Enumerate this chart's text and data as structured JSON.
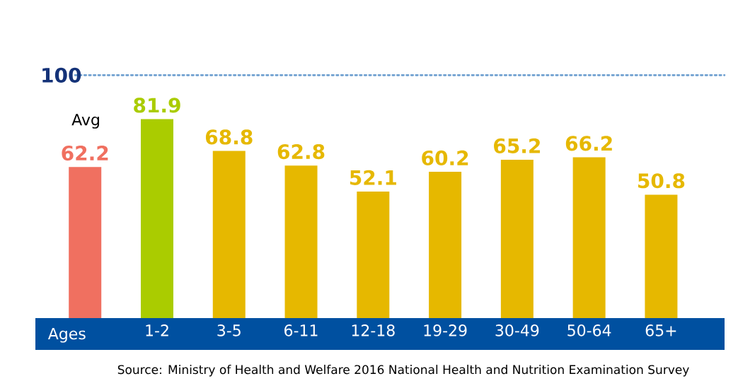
{
  "chart_data": {
    "type": "bar",
    "categories": [
      "Avg",
      "1-2",
      "3-5",
      "6-11",
      "12-18",
      "19-29",
      "30-49",
      "50-64",
      "65+"
    ],
    "values": [
      62.2,
      81.9,
      68.8,
      62.8,
      52.1,
      60.2,
      65.2,
      66.2,
      50.8
    ],
    "colors": [
      "#f07060",
      "#aacc00",
      "#e6b800",
      "#e6b800",
      "#e6b800",
      "#e6b800",
      "#e6b800",
      "#e6b800",
      "#e6b800"
    ],
    "xlabel": "Ages",
    "tick_labels": "x",
    "data_labels": true,
    "ref_lines": [
      {
        "axis": "y",
        "value": 100,
        "label": "100",
        "color": "#6fa0d0",
        "line_style": "dotted"
      }
    ],
    "annotations": [
      "Source: Ministry of Health and Welfare 2016 National Health and Nutrition Examination Survey"
    ]
  }
}
